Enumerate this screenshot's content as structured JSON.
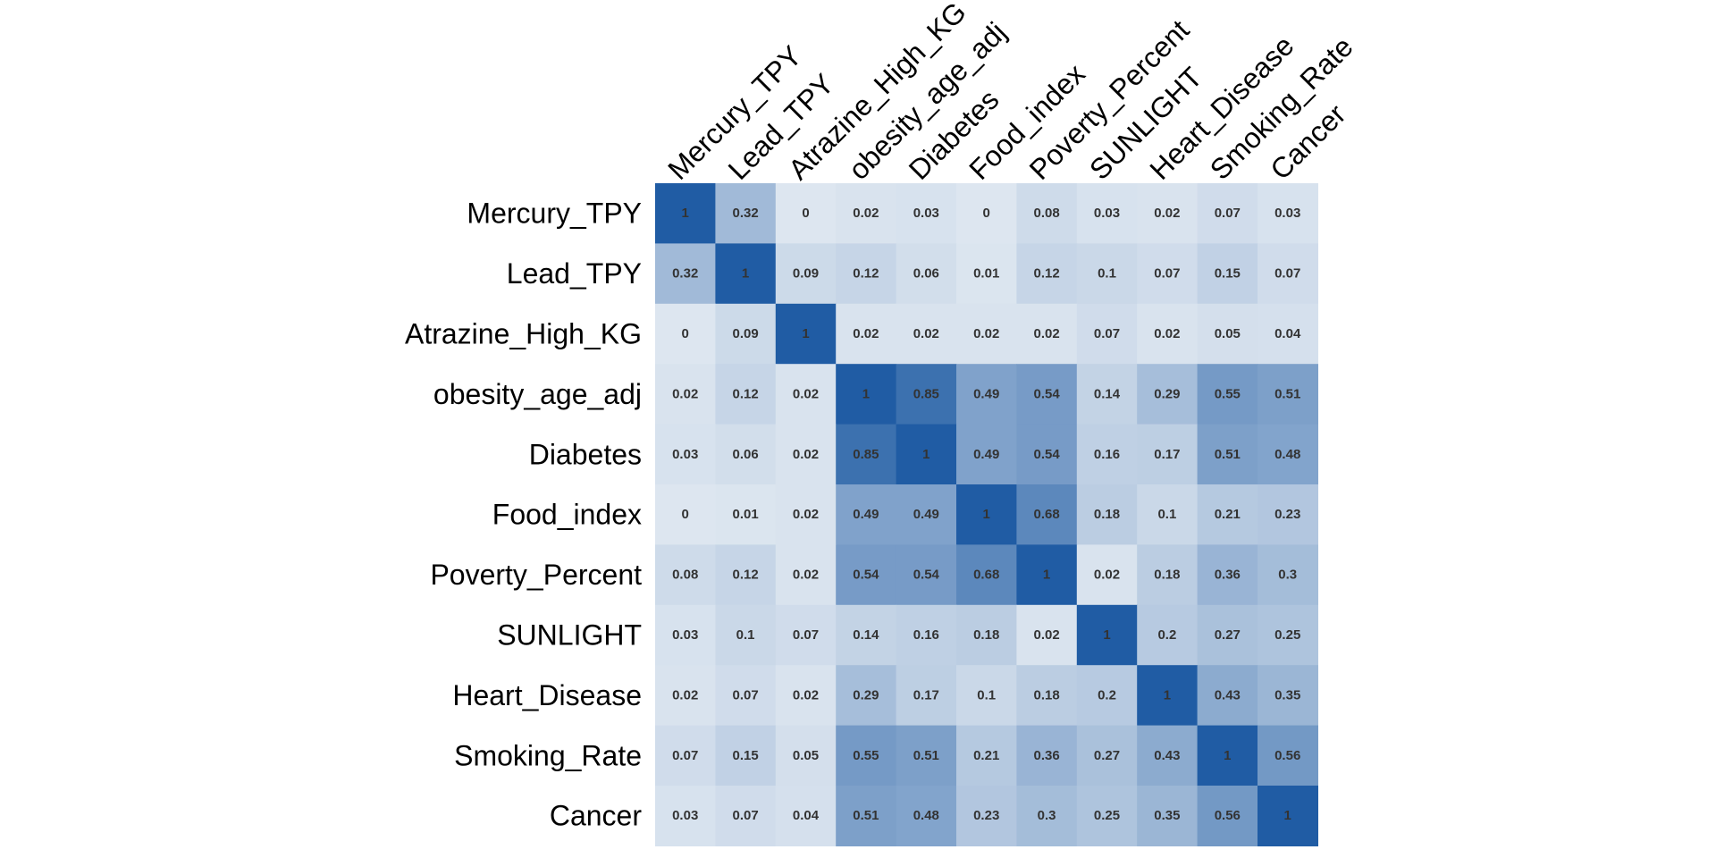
{
  "chart_data": {
    "type": "heatmap",
    "title": "",
    "xlabel": "",
    "ylabel": "",
    "variables": [
      "Mercury_TPY",
      "Lead_TPY",
      "Atrazine_High_KG",
      "obesity_age_adj",
      "Diabetes",
      "Food_index",
      "Poverty_Percent",
      "SUNLIGHT",
      "Heart_Disease",
      "Smoking_Rate",
      "Cancer"
    ],
    "values": [
      [
        1,
        0.32,
        0,
        0.02,
        0.03,
        0,
        0.08,
        0.03,
        0.02,
        0.07,
        0.03
      ],
      [
        0.32,
        1,
        0.09,
        0.12,
        0.06,
        0.01,
        0.12,
        0.1,
        0.07,
        0.15,
        0.07
      ],
      [
        0,
        0.09,
        1,
        0.02,
        0.02,
        0.02,
        0.02,
        0.07,
        0.02,
        0.05,
        0.04
      ],
      [
        0.02,
        0.12,
        0.02,
        1,
        0.85,
        0.49,
        0.54,
        0.14,
        0.29,
        0.55,
        0.51
      ],
      [
        0.03,
        0.06,
        0.02,
        0.85,
        1,
        0.49,
        0.54,
        0.16,
        0.17,
        0.51,
        0.48
      ],
      [
        0,
        0.01,
        0.02,
        0.49,
        0.49,
        1,
        0.68,
        0.18,
        0.1,
        0.21,
        0.23
      ],
      [
        0.08,
        0.12,
        0.02,
        0.54,
        0.54,
        0.68,
        1,
        0.02,
        0.18,
        0.36,
        0.3
      ],
      [
        0.03,
        0.1,
        0.07,
        0.14,
        0.16,
        0.18,
        0.02,
        1,
        0.2,
        0.27,
        0.25
      ],
      [
        0.02,
        0.07,
        0.02,
        0.29,
        0.17,
        0.1,
        0.18,
        0.2,
        1,
        0.43,
        0.35
      ],
      [
        0.07,
        0.15,
        0.05,
        0.55,
        0.51,
        0.21,
        0.36,
        0.27,
        0.43,
        1,
        0.56
      ],
      [
        0.03,
        0.07,
        0.04,
        0.51,
        0.48,
        0.23,
        0.3,
        0.25,
        0.35,
        0.56,
        1
      ]
    ],
    "value_range": [
      0,
      1
    ],
    "color_low": "#dde6f0",
    "color_high": "#205ca4",
    "label_color": "#333333",
    "legend": "none"
  }
}
